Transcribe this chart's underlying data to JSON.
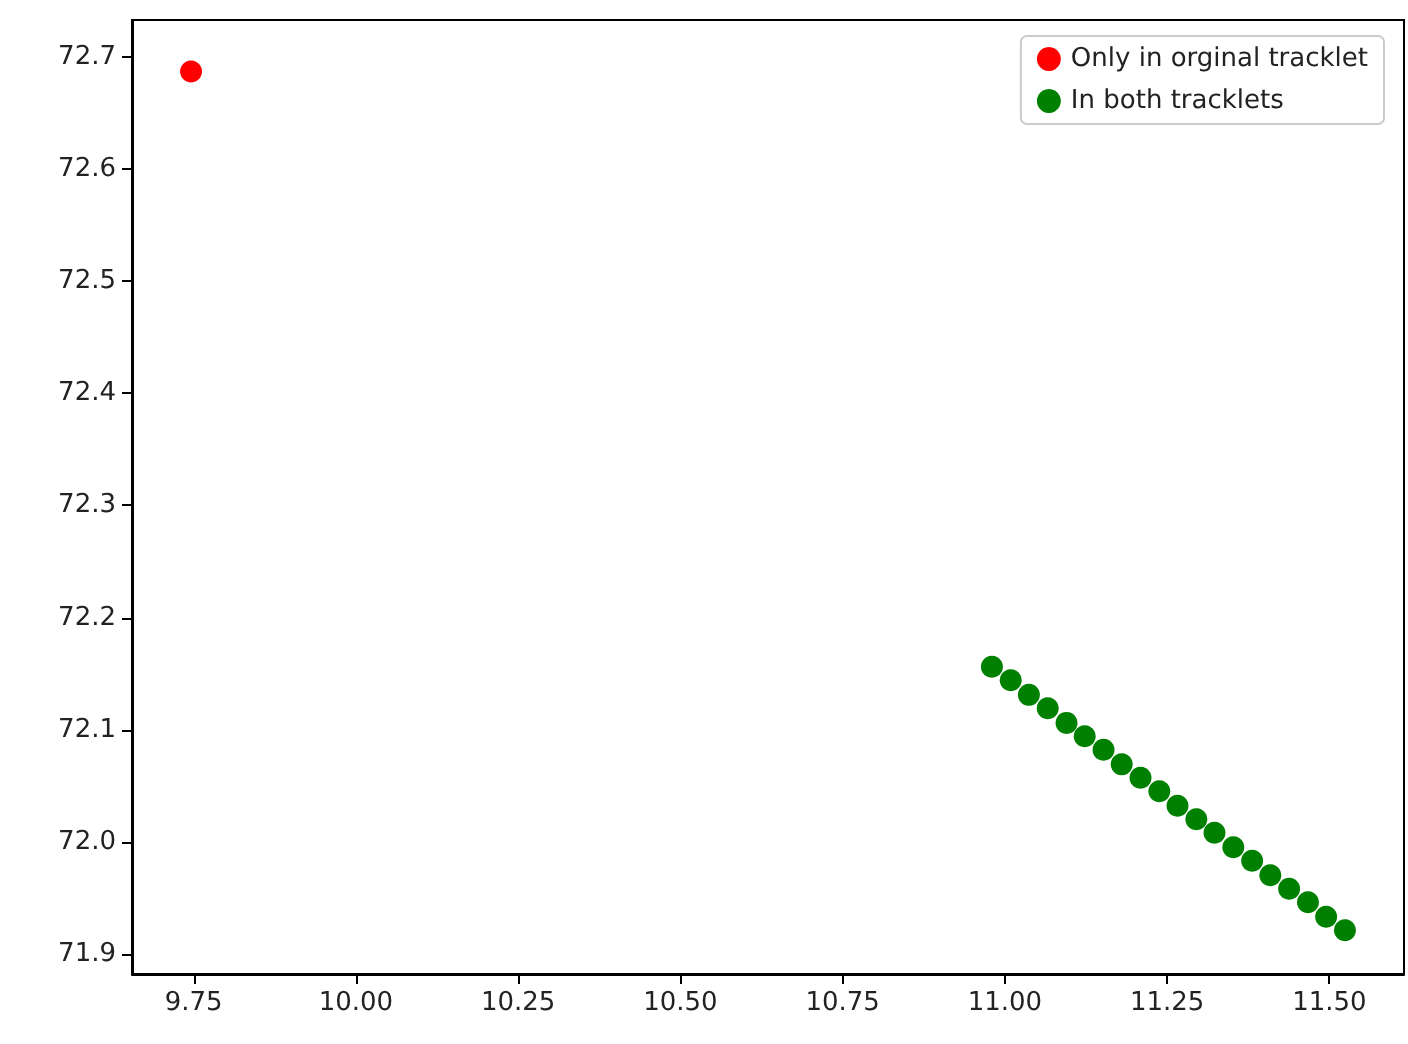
{
  "chart_data": {
    "type": "scatter",
    "marker": "circle",
    "grid": false,
    "legend": "top right",
    "xlim": [
      9.655,
      11.615
    ],
    "xticks": [
      {
        "value": 9.75,
        "label": "9.75"
      },
      {
        "value": 10.0,
        "label": "10.00"
      },
      {
        "value": 10.25,
        "label": "10.25"
      },
      {
        "value": 10.5,
        "label": "10.50"
      },
      {
        "value": 10.75,
        "label": "10.75"
      },
      {
        "value": 11.0,
        "label": "11.00"
      },
      {
        "value": 11.25,
        "label": "11.25"
      },
      {
        "value": 11.5,
        "label": "11.50"
      }
    ],
    "ylim": [
      71.882,
      72.733
    ],
    "yticks": [
      {
        "value": 71.9,
        "label": "71.9"
      },
      {
        "value": 72.0,
        "label": "72.0"
      },
      {
        "value": 72.1,
        "label": "72.1"
      },
      {
        "value": 72.2,
        "label": "72.2"
      },
      {
        "value": 72.3,
        "label": "72.3"
      },
      {
        "value": 72.4,
        "label": "72.4"
      },
      {
        "value": 72.5,
        "label": "72.5"
      },
      {
        "value": 72.6,
        "label": "72.6"
      },
      {
        "value": 72.7,
        "label": "72.7"
      }
    ],
    "series": [
      {
        "name": "Only in orginal tracklet",
        "color": "#ff0000",
        "x": [
          9.746
        ],
        "values": [
          72.687
        ]
      },
      {
        "name": "In both tracklets",
        "color": "#008000",
        "x": [
          10.98,
          11.009,
          11.037,
          11.066,
          11.095,
          11.123,
          11.152,
          11.18,
          11.209,
          11.238,
          11.266,
          11.295,
          11.323,
          11.352,
          11.381,
          11.409,
          11.438,
          11.467,
          11.495,
          11.524
        ],
        "values": [
          72.156,
          72.144,
          72.131,
          72.119,
          72.106,
          72.094,
          72.082,
          72.069,
          72.057,
          72.045,
          72.032,
          72.02,
          72.008,
          71.995,
          71.983,
          71.97,
          71.958,
          71.946,
          71.933,
          71.921
        ]
      }
    ]
  }
}
